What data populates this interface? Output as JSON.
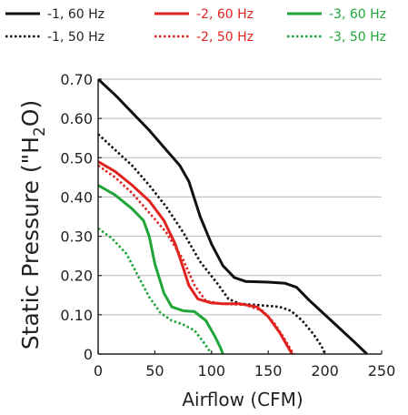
{
  "chart_data": {
    "type": "line",
    "xlabel": "Airflow (CFM)",
    "ylabel_main": "Static Pressure (\"H",
    "ylabel_sub": "2",
    "ylabel_end": "O)",
    "xlim": [
      0,
      250
    ],
    "ylim": [
      0,
      0.7
    ],
    "xticks": [
      0,
      50,
      100,
      150,
      200,
      250
    ],
    "xtick_labels": [
      "0",
      "50",
      "100",
      "150",
      "200",
      "250"
    ],
    "yticks": [
      0,
      0.1,
      0.2,
      0.3,
      0.4,
      0.5,
      0.6,
      0.7
    ],
    "ytick_labels": [
      "0",
      "0.10",
      "0.20",
      "0.30",
      "0.40",
      "0.50",
      "0.60",
      "0.70"
    ],
    "grid": "horizontal",
    "legend_position": "top",
    "series": [
      {
        "name": "-1, 60 Hz",
        "color": "#111111",
        "dash": "solid",
        "points": [
          [
            0,
            0.7
          ],
          [
            15,
            0.66
          ],
          [
            30,
            0.615
          ],
          [
            45,
            0.57
          ],
          [
            60,
            0.52
          ],
          [
            72,
            0.48
          ],
          [
            80,
            0.44
          ],
          [
            90,
            0.35
          ],
          [
            100,
            0.28
          ],
          [
            110,
            0.225
          ],
          [
            120,
            0.195
          ],
          [
            130,
            0.185
          ],
          [
            150,
            0.183
          ],
          [
            165,
            0.18
          ],
          [
            175,
            0.17
          ],
          [
            185,
            0.14
          ],
          [
            200,
            0.1
          ],
          [
            215,
            0.06
          ],
          [
            228,
            0.025
          ],
          [
            237,
            0
          ]
        ]
      },
      {
        "name": "-1, 50 Hz",
        "color": "#111111",
        "dash": "dotted",
        "points": [
          [
            0,
            0.56
          ],
          [
            15,
            0.52
          ],
          [
            30,
            0.48
          ],
          [
            45,
            0.43
          ],
          [
            60,
            0.375
          ],
          [
            75,
            0.31
          ],
          [
            90,
            0.235
          ],
          [
            105,
            0.18
          ],
          [
            115,
            0.14
          ],
          [
            125,
            0.128
          ],
          [
            140,
            0.125
          ],
          [
            160,
            0.12
          ],
          [
            170,
            0.11
          ],
          [
            180,
            0.085
          ],
          [
            190,
            0.05
          ],
          [
            197,
            0.02
          ],
          [
            200,
            0
          ]
        ]
      },
      {
        "name": "-2, 60 Hz",
        "color": "#e0231e",
        "dash": "solid",
        "points": [
          [
            0,
            0.49
          ],
          [
            15,
            0.465
          ],
          [
            30,
            0.43
          ],
          [
            45,
            0.39
          ],
          [
            58,
            0.34
          ],
          [
            68,
            0.28
          ],
          [
            75,
            0.22
          ],
          [
            80,
            0.175
          ],
          [
            88,
            0.14
          ],
          [
            100,
            0.13
          ],
          [
            110,
            0.128
          ],
          [
            125,
            0.128
          ],
          [
            140,
            0.12
          ],
          [
            150,
            0.095
          ],
          [
            160,
            0.055
          ],
          [
            167,
            0.02
          ],
          [
            171,
            0
          ]
        ]
      },
      {
        "name": "-2, 50 Hz",
        "color": "#e0231e",
        "dash": "dotted",
        "points": [
          [
            0,
            0.48
          ],
          [
            15,
            0.45
          ],
          [
            30,
            0.41
          ],
          [
            45,
            0.36
          ],
          [
            60,
            0.31
          ],
          [
            75,
            0.24
          ],
          [
            85,
            0.175
          ],
          [
            95,
            0.135
          ],
          [
            110,
            0.128
          ],
          [
            130,
            0.125
          ],
          [
            145,
            0.11
          ],
          [
            155,
            0.08
          ],
          [
            163,
            0.045
          ],
          [
            170,
            0.01
          ],
          [
            173,
            0
          ]
        ]
      },
      {
        "name": "-3, 60 Hz",
        "color": "#1fa538",
        "dash": "solid",
        "points": [
          [
            0,
            0.43
          ],
          [
            15,
            0.405
          ],
          [
            30,
            0.37
          ],
          [
            40,
            0.34
          ],
          [
            45,
            0.3
          ],
          [
            50,
            0.23
          ],
          [
            58,
            0.155
          ],
          [
            65,
            0.12
          ],
          [
            75,
            0.11
          ],
          [
            85,
            0.108
          ],
          [
            95,
            0.085
          ],
          [
            103,
            0.045
          ],
          [
            108,
            0.015
          ],
          [
            110,
            0
          ]
        ]
      },
      {
        "name": "-3, 50 Hz",
        "color": "#1fa538",
        "dash": "dotted",
        "points": [
          [
            0,
            0.32
          ],
          [
            12,
            0.295
          ],
          [
            25,
            0.255
          ],
          [
            35,
            0.2
          ],
          [
            45,
            0.145
          ],
          [
            55,
            0.105
          ],
          [
            65,
            0.085
          ],
          [
            75,
            0.075
          ],
          [
            85,
            0.06
          ],
          [
            93,
            0.03
          ],
          [
            100,
            0
          ]
        ]
      }
    ]
  }
}
